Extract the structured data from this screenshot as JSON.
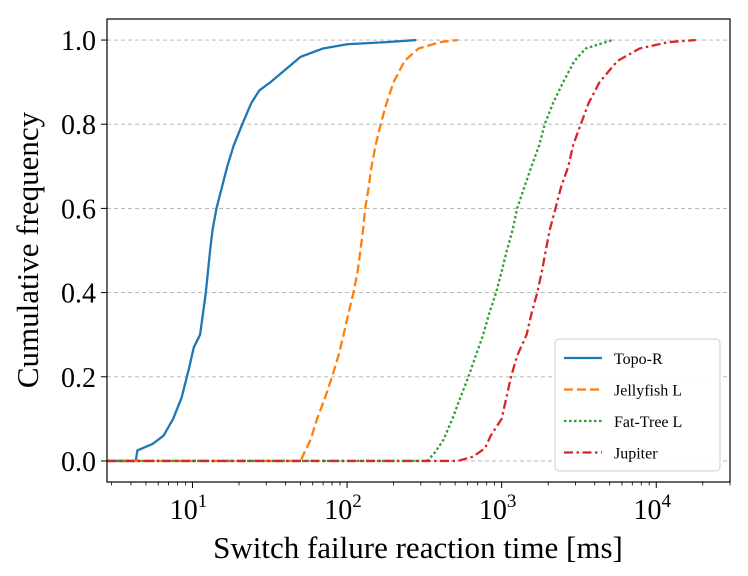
{
  "chart_data": {
    "type": "line",
    "title": "",
    "xlabel": "Switch failure reaction time [ms]",
    "ylabel": "Cumulative frequency",
    "xscale": "log",
    "xlim": [
      2.8,
      30000
    ],
    "ylim": [
      -0.05,
      1.05
    ],
    "grid": "y-dashed",
    "legend_position": "lower-right",
    "x_ticks": [
      {
        "base": "10",
        "exp": "1",
        "value": 10
      },
      {
        "base": "10",
        "exp": "2",
        "value": 100
      },
      {
        "base": "10",
        "exp": "3",
        "value": 1000
      },
      {
        "base": "10",
        "exp": "4",
        "value": 10000
      }
    ],
    "y_ticks": [
      {
        "label": "0.0",
        "value": 0.0
      },
      {
        "label": "0.2",
        "value": 0.2
      },
      {
        "label": "0.4",
        "value": 0.4
      },
      {
        "label": "0.6",
        "value": 0.6
      },
      {
        "label": "0.8",
        "value": 0.8
      },
      {
        "label": "1.0",
        "value": 1.0
      }
    ],
    "series": [
      {
        "name": "Topo-R",
        "color": "#1f77b4",
        "dash": "solid",
        "points": [
          [
            2.8,
            0
          ],
          [
            4.3,
            0
          ],
          [
            4.4,
            0.025
          ],
          [
            5.5,
            0.04
          ],
          [
            6.5,
            0.06
          ],
          [
            7.5,
            0.1
          ],
          [
            8.5,
            0.15
          ],
          [
            9.5,
            0.22
          ],
          [
            10.2,
            0.27
          ],
          [
            11.2,
            0.3
          ],
          [
            12.2,
            0.4
          ],
          [
            13,
            0.5
          ],
          [
            13.5,
            0.55
          ],
          [
            14.3,
            0.6
          ],
          [
            15.5,
            0.65
          ],
          [
            16.8,
            0.7
          ],
          [
            18.5,
            0.75
          ],
          [
            21,
            0.8
          ],
          [
            24,
            0.85
          ],
          [
            27,
            0.88
          ],
          [
            32,
            0.9
          ],
          [
            40,
            0.93
          ],
          [
            50,
            0.96
          ],
          [
            70,
            0.98
          ],
          [
            100,
            0.99
          ],
          [
            180,
            0.995
          ],
          [
            280,
            1.0
          ]
        ]
      },
      {
        "name": "Jellyfish L",
        "color": "#ff7f0e",
        "dash": "dashed",
        "points": [
          [
            2.8,
            0
          ],
          [
            50,
            0
          ],
          [
            53,
            0.02
          ],
          [
            58,
            0.05
          ],
          [
            64,
            0.1
          ],
          [
            72,
            0.15
          ],
          [
            80,
            0.2
          ],
          [
            88,
            0.25
          ],
          [
            95,
            0.3
          ],
          [
            102,
            0.35
          ],
          [
            110,
            0.4
          ],
          [
            117,
            0.45
          ],
          [
            122,
            0.5
          ],
          [
            127,
            0.55
          ],
          [
            131,
            0.6
          ],
          [
            138,
            0.65
          ],
          [
            144,
            0.7
          ],
          [
            153,
            0.75
          ],
          [
            165,
            0.8
          ],
          [
            180,
            0.85
          ],
          [
            200,
            0.9
          ],
          [
            235,
            0.95
          ],
          [
            290,
            0.98
          ],
          [
            400,
            0.995
          ],
          [
            520,
            1.0
          ]
        ]
      },
      {
        "name": "Fat-Tree L",
        "color": "#2ca02c",
        "dash": "dotted",
        "points": [
          [
            2.8,
            0
          ],
          [
            330,
            0
          ],
          [
            370,
            0.02
          ],
          [
            420,
            0.05
          ],
          [
            480,
            0.1
          ],
          [
            540,
            0.15
          ],
          [
            610,
            0.2
          ],
          [
            680,
            0.25
          ],
          [
            760,
            0.3
          ],
          [
            830,
            0.35
          ],
          [
            920,
            0.4
          ],
          [
            1000,
            0.45
          ],
          [
            1080,
            0.5
          ],
          [
            1180,
            0.55
          ],
          [
            1260,
            0.6
          ],
          [
            1400,
            0.65
          ],
          [
            1560,
            0.7
          ],
          [
            1750,
            0.75
          ],
          [
            1900,
            0.8
          ],
          [
            2150,
            0.85
          ],
          [
            2500,
            0.9
          ],
          [
            2950,
            0.95
          ],
          [
            3500,
            0.98
          ],
          [
            5200,
            1.0
          ]
        ]
      },
      {
        "name": "Jupiter",
        "color": "#d62728",
        "dash": "dashdot",
        "points": [
          [
            2.8,
            0
          ],
          [
            520,
            0
          ],
          [
            650,
            0.01
          ],
          [
            780,
            0.03
          ],
          [
            850,
            0.06
          ],
          [
            1000,
            0.1
          ],
          [
            1150,
            0.2
          ],
          [
            1260,
            0.25
          ],
          [
            1450,
            0.3
          ],
          [
            1560,
            0.35
          ],
          [
            1700,
            0.4
          ],
          [
            1820,
            0.45
          ],
          [
            1930,
            0.5
          ],
          [
            2050,
            0.55
          ],
          [
            2230,
            0.6
          ],
          [
            2420,
            0.65
          ],
          [
            2700,
            0.7
          ],
          [
            2900,
            0.75
          ],
          [
            3250,
            0.8
          ],
          [
            3650,
            0.85
          ],
          [
            4300,
            0.9
          ],
          [
            5600,
            0.95
          ],
          [
            7800,
            0.98
          ],
          [
            12000,
            0.995
          ],
          [
            18000,
            1.0
          ]
        ]
      }
    ]
  }
}
